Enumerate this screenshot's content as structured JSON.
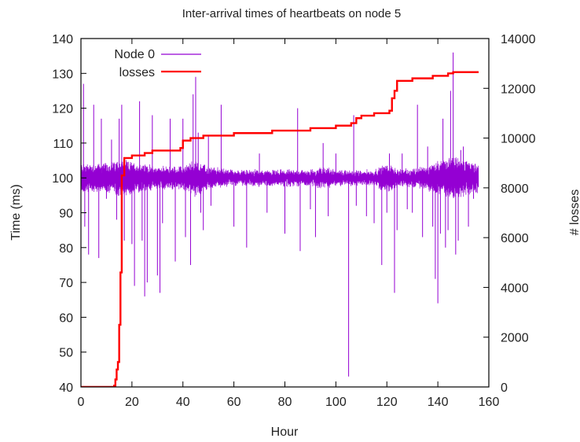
{
  "chart_data": {
    "type": "line",
    "title": "Inter-arrival times of heartbeats on node 5",
    "xlabel": "Hour",
    "ylabel": "Time (ms)",
    "y2label": "# losses",
    "xlim": [
      0,
      160
    ],
    "ylim": [
      40,
      140
    ],
    "y2lim": [
      0,
      14000
    ],
    "xticks": [
      0,
      20,
      40,
      60,
      80,
      100,
      120,
      140,
      160
    ],
    "yticks": [
      40,
      50,
      60,
      70,
      80,
      90,
      100,
      110,
      120,
      130,
      140
    ],
    "y2ticks": [
      0,
      2000,
      4000,
      6000,
      8000,
      10000,
      12000,
      14000
    ],
    "grid": false,
    "legend_position": "top-left",
    "series": [
      {
        "name": "Node 0",
        "axis": "left",
        "color": "#9400d3",
        "style": "noisy-band",
        "x_range": [
          0,
          156
        ],
        "baseline": 100,
        "band": [
          {
            "x": 0,
            "half": 4
          },
          {
            "x": 10,
            "half": 4
          },
          {
            "x": 15,
            "half": 5
          },
          {
            "x": 30,
            "half": 3
          },
          {
            "x": 40,
            "half": 3
          },
          {
            "x": 45,
            "half": 5
          },
          {
            "x": 50,
            "half": 3
          },
          {
            "x": 60,
            "half": 2
          },
          {
            "x": 80,
            "half": 2
          },
          {
            "x": 90,
            "half": 2
          },
          {
            "x": 95,
            "half": 3
          },
          {
            "x": 100,
            "half": 2
          },
          {
            "x": 115,
            "half": 2
          },
          {
            "x": 120,
            "half": 4
          },
          {
            "x": 125,
            "half": 2
          },
          {
            "x": 135,
            "half": 3
          },
          {
            "x": 145,
            "half": 6
          },
          {
            "x": 156,
            "half": 4
          }
        ],
        "spikes": [
          [
            1,
            127
          ],
          [
            1.5,
            86
          ],
          [
            3,
            78
          ],
          [
            5,
            121
          ],
          [
            7,
            77
          ],
          [
            8,
            117
          ],
          [
            10,
            94
          ],
          [
            12,
            111
          ],
          [
            14,
            88
          ],
          [
            15,
            117
          ],
          [
            16,
            121
          ],
          [
            17,
            82
          ],
          [
            20,
            81
          ],
          [
            21,
            69
          ],
          [
            23,
            122
          ],
          [
            24,
            82
          ],
          [
            25,
            66
          ],
          [
            26,
            70
          ],
          [
            28,
            118
          ],
          [
            30,
            72
          ],
          [
            31,
            67
          ],
          [
            32,
            87
          ],
          [
            35,
            117
          ],
          [
            37,
            76
          ],
          [
            40,
            117
          ],
          [
            41,
            83
          ],
          [
            43,
            75
          ],
          [
            44,
            124
          ],
          [
            45,
            129
          ],
          [
            46,
            113
          ],
          [
            47,
            90
          ],
          [
            48,
            85
          ],
          [
            50,
            112
          ],
          [
            51,
            92
          ],
          [
            55,
            121
          ],
          [
            60,
            86
          ],
          [
            65,
            80
          ],
          [
            70,
            107
          ],
          [
            73,
            90
          ],
          [
            80,
            84
          ],
          [
            85,
            120
          ],
          [
            86,
            79
          ],
          [
            90,
            91
          ],
          [
            92,
            83
          ],
          [
            95,
            110
          ],
          [
            97,
            89
          ],
          [
            100,
            107
          ],
          [
            105,
            43
          ],
          [
            107,
            118
          ],
          [
            108,
            92
          ],
          [
            112,
            89
          ],
          [
            115,
            87
          ],
          [
            118,
            75
          ],
          [
            120,
            90
          ],
          [
            121,
            107
          ],
          [
            123,
            67
          ],
          [
            124,
            85
          ],
          [
            126,
            107
          ],
          [
            128,
            91
          ],
          [
            130,
            90
          ],
          [
            132,
            121
          ],
          [
            134,
            83
          ],
          [
            136,
            109
          ],
          [
            138,
            86
          ],
          [
            139,
            71
          ],
          [
            140,
            64
          ],
          [
            141,
            84
          ],
          [
            142,
            117
          ],
          [
            143,
            80
          ],
          [
            144,
            85
          ],
          [
            145,
            125
          ],
          [
            146,
            136
          ],
          [
            147,
            78
          ],
          [
            148,
            82
          ],
          [
            149,
            108
          ],
          [
            150,
            109
          ],
          [
            152,
            86
          ],
          [
            154,
            94
          ]
        ]
      },
      {
        "name": "losses",
        "axis": "right",
        "color": "#ff0000",
        "style": "step",
        "points": [
          [
            0,
            0
          ],
          [
            8,
            0
          ],
          [
            13,
            50
          ],
          [
            13.5,
            300
          ],
          [
            14,
            700
          ],
          [
            14.5,
            1000
          ],
          [
            15,
            2500
          ],
          [
            15.5,
            4600
          ],
          [
            16,
            8500
          ],
          [
            17,
            9200
          ],
          [
            20,
            9300
          ],
          [
            25,
            9400
          ],
          [
            28,
            9500
          ],
          [
            35,
            9500
          ],
          [
            39,
            9600
          ],
          [
            40,
            9900
          ],
          [
            43,
            10000
          ],
          [
            48,
            10100
          ],
          [
            60,
            10200
          ],
          [
            75,
            10300
          ],
          [
            90,
            10400
          ],
          [
            100,
            10500
          ],
          [
            106,
            10600
          ],
          [
            108,
            10800
          ],
          [
            110,
            10900
          ],
          [
            115,
            11000
          ],
          [
            121,
            11100
          ],
          [
            122,
            11600
          ],
          [
            123,
            11900
          ],
          [
            124,
            12300
          ],
          [
            130,
            12400
          ],
          [
            138,
            12500
          ],
          [
            144,
            12600
          ],
          [
            146,
            12650
          ],
          [
            156,
            12650
          ]
        ]
      }
    ]
  }
}
